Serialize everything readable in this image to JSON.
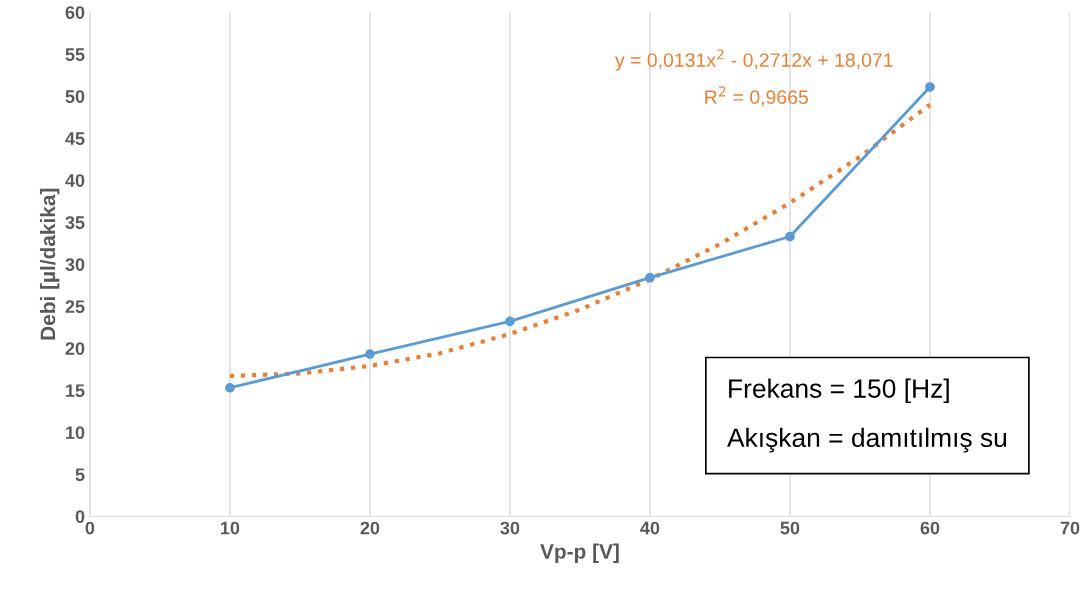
{
  "chart_data": {
    "type": "line",
    "xlabel": "Vp-p [V]",
    "ylabel": "Debi [µl/dakika]",
    "x": [
      10,
      20,
      30,
      40,
      50,
      60
    ],
    "series": [
      {
        "color": "#5b9bd5",
        "values": [
          15.3,
          19.3,
          23.2,
          28.4,
          33.3,
          51.1
        ],
        "marker": "circle",
        "line_style": "solid"
      },
      {
        "color": "#ed7d31",
        "x": [
          10,
          15,
          20,
          25,
          30,
          35,
          40,
          45,
          50,
          55,
          60
        ],
        "values": [
          16.7,
          17.0,
          17.9,
          19.4,
          21.7,
          24.6,
          28.2,
          32.4,
          37.3,
          42.8,
          49.0
        ],
        "marker": "none",
        "line_style": "dotted"
      }
    ],
    "xlim": [
      0,
      70
    ],
    "xticks": [
      0,
      10,
      20,
      30,
      40,
      50,
      60,
      70
    ],
    "ylim": [
      0,
      60
    ],
    "yticks": [
      0,
      5,
      10,
      15,
      20,
      25,
      30,
      35,
      40,
      45,
      50,
      55,
      60
    ],
    "grid": "x",
    "legend": false,
    "annotations": [
      "y = 0,0131x$^{2}$ - 0,2712x + 18,071",
      "R$^{2}$ = 0,9665",
      "Frekans = 150 [Hz]",
      "Akışkan = damıtılmış su"
    ]
  }
}
